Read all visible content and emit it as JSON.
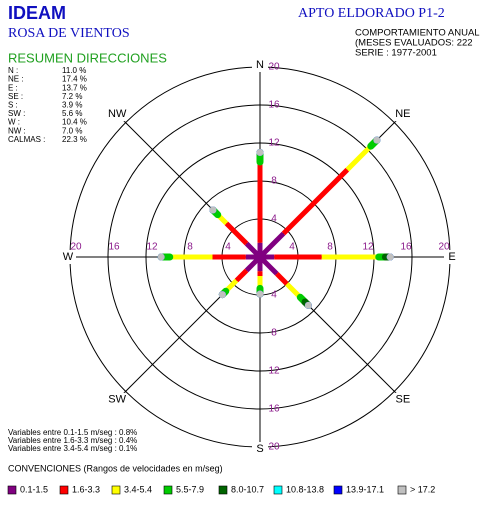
{
  "header": {
    "brand": "IDEAM",
    "subtitle": "ROSA DE VIENTOS",
    "station": "APTO ELDORADO P1-2",
    "info": [
      "COMPORTAMIENTO ANUAL",
      "(MESES EVALUADOS: 222",
      "SERIE : 1977-2001"
    ]
  },
  "summary": {
    "title": "RESUMEN DIRECCIONES",
    "rows": [
      [
        "N :",
        "11.0 %"
      ],
      [
        "NE :",
        "17.4 %"
      ],
      [
        "E :",
        "13.7 %"
      ],
      [
        "SE :",
        "7.2 %"
      ],
      [
        "S :",
        "3.9 %"
      ],
      [
        "SW :",
        "5.6 %"
      ],
      [
        "W :",
        "10.4 %"
      ],
      [
        "NW :",
        "7.0 %"
      ],
      [
        "CALMAS :",
        "22.3 %"
      ]
    ]
  },
  "variables": [
    "Variables entre  0.1-1.5 m/seg :   0.8%",
    "Variables entre  1.6-3.3 m/seg :   0.4%",
    "Variables entre  3.4-5.4 m/seg :   0.1%"
  ],
  "legend_title": "CONVENCIONES (Rangos de velocidades en m/seg)",
  "chart_data": {
    "type": "windrose",
    "directions": [
      "N",
      "NE",
      "E",
      "SE",
      "S",
      "SW",
      "W",
      "NW"
    ],
    "rlim": [
      0,
      20
    ],
    "rticks": [
      4,
      8,
      12,
      16,
      20
    ],
    "series": [
      {
        "name": "0.1-1.5",
        "color": "#800080",
        "values": [
          1.5,
          3.5,
          1.5,
          2.5,
          1.5,
          2.0,
          1.5,
          2.0
        ]
      },
      {
        "name": "1.6-3.3",
        "color": "#ff0000",
        "values": [
          8.5,
          9.5,
          5.0,
          1.5,
          0.5,
          1.5,
          3.5,
          3.0
        ]
      },
      {
        "name": "3.4-5.4",
        "color": "#ffff00",
        "values": [
          0,
          3.5,
          6.0,
          2.0,
          1.3,
          1.6,
          4.5,
          1.3
        ]
      },
      {
        "name": "5.5-7.9",
        "color": "#00cc00",
        "values": [
          1.0,
          0.9,
          0.7,
          0.7,
          0.6,
          0.5,
          0.9,
          0.7
        ]
      },
      {
        "name": "8.0-10.7",
        "color": "#006400",
        "values": [
          0,
          0,
          0.5,
          0.5,
          0,
          0,
          0,
          0
        ]
      },
      {
        "name": "10.8-13.8",
        "color": "#00ffff",
        "values": [
          0,
          0,
          0,
          0,
          0,
          0,
          0,
          0
        ]
      },
      {
        "name": "13.9-17.1",
        "color": "#0000ff",
        "values": [
          0,
          0,
          0,
          0,
          0,
          0,
          0,
          0
        ]
      },
      {
        "name": "> 17.2",
        "color": "#c0c0c0",
        "values": [
          0,
          0,
          0,
          0,
          0,
          0,
          0,
          0
        ]
      }
    ]
  }
}
